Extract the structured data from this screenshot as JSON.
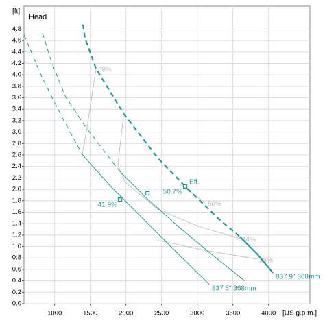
{
  "chart_data": {
    "type": "line",
    "title": "Head",
    "y_unit": "[ft]",
    "x_unit": "[US g.p.m.]",
    "xlim": [
      570,
      4580
    ],
    "ylim": [
      0,
      5.2
    ],
    "xticks": [
      1000,
      1500,
      2000,
      2500,
      3000,
      3500,
      4000
    ],
    "yticks": [
      {
        "value": 0,
        "label": "0.0"
      },
      0.2,
      0.4,
      0.6,
      0.8,
      {
        "value": 1,
        "label": "1.0"
      },
      1.2,
      1.4,
      1.6,
      1.8,
      {
        "value": 2,
        "label": "2.0"
      },
      2.2,
      2.4,
      2.6,
      2.8,
      {
        "value": 3,
        "label": "3.0"
      },
      3.2,
      3.4,
      3.6,
      3.8,
      {
        "value": 4,
        "label": "4.0"
      },
      4.2,
      4.4,
      4.6,
      4.8
    ],
    "grid": true,
    "series": [
      {
        "color": "#1b9c9c",
        "line_style": "dashed",
        "width": 2.2,
        "x": [
          1397,
          1426,
          1580,
          1964,
          2445,
          2830,
          3311,
          3599
        ],
        "values": [
          4.88,
          4.64,
          4.11,
          3.33,
          2.55,
          2.05,
          1.47,
          1.17
        ]
      },
      {
        "name": "837 9\" 368mm",
        "color": "#1b9c9c",
        "line_style": "solid",
        "width": 2.2,
        "x": [
          3599,
          3839,
          4061
        ],
        "values": [
          1.17,
          0.87,
          0.54
        ]
      },
      {
        "color": "#1b9c9c",
        "line_style": "dashed",
        "width": 1,
        "x": [
          570,
          810,
          1099,
          1387
        ],
        "values": [
          4.7,
          3.99,
          3.27,
          2.61
        ]
      },
      {
        "name": "837 5\" 368mm",
        "color": "#1b9c9c",
        "line_style": "solid",
        "width": 1,
        "x": [
          1387,
          1772,
          2157,
          2637,
          3166
        ],
        "values": [
          2.61,
          2.07,
          1.59,
          0.99,
          0.34
        ]
      },
      {
        "color": "#1b9c9c",
        "line_style": "dashed",
        "width": 1,
        "x": [
          830,
          955,
          1147,
          1435,
          1916
        ],
        "values": [
          4.73,
          4.23,
          3.63,
          3.09,
          2.31
        ]
      },
      {
        "color": "#1b9c9c",
        "line_style": "solid",
        "width": 1,
        "x": [
          1916,
          2301,
          2734,
          3214,
          3666
        ],
        "values": [
          2.31,
          1.83,
          1.35,
          0.85,
          0.4
        ]
      }
    ],
    "efficiency_curves": [
      {
        "label": "38%",
        "color": "#c4c4c4",
        "x": [
          1387,
          1464,
          1580
        ],
        "values": [
          2.61,
          3.15,
          4.11
        ]
      },
      {
        "label": "44%",
        "color": "#c4c4c4",
        "x": [
          1964,
          1887,
          1983,
          2445,
          3022,
          3599
        ],
        "values": [
          3.27,
          2.43,
          2.13,
          1.65,
          1.35,
          1.14
        ]
      },
      {
        "label": "50%",
        "color": "#c4c4c4",
        "x": [
          2753,
          3118
        ],
        "values": [
          2.09,
          1.76
        ]
      },
      {
        "label": "38%",
        "color": "#c4c4c4",
        "x": [
          2445,
          3118,
          3839
        ],
        "values": [
          1.11,
          0.93,
          0.78
        ]
      }
    ],
    "points": [
      {
        "label": "41.9%",
        "x": 1916,
        "y": 1.82
      },
      {
        "x": 2301,
        "y": 1.93
      },
      {
        "label": "50.7%",
        "note": "Eff.",
        "x": 2830,
        "y": 2.05
      }
    ]
  }
}
